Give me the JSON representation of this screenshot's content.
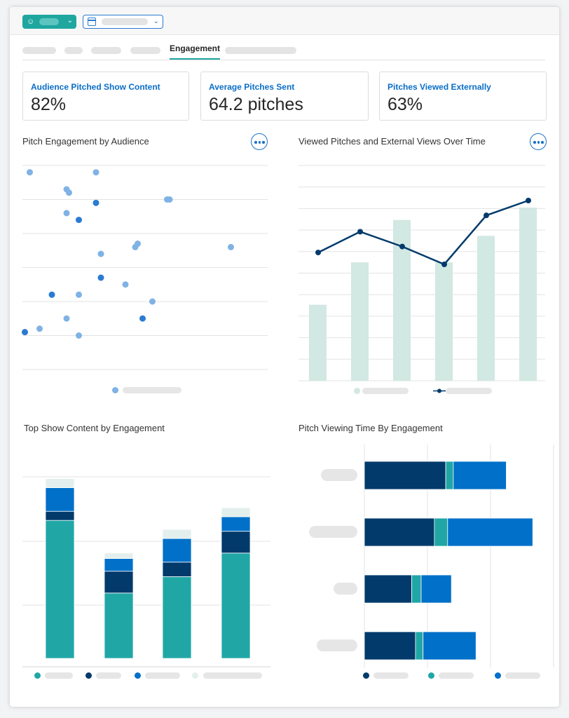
{
  "tabs": {
    "active_label": "Engagement"
  },
  "icons": {
    "audience": "audience-icon",
    "calendar": "calendar-icon",
    "chevron": "chevron-down-icon",
    "more": "more-options-icon"
  },
  "colors": {
    "teal": "#21a6a6",
    "navy": "#013a6b",
    "blue": "#0070c9",
    "light_teal": "#e3efec",
    "pale_bar": "#d2e8e2",
    "dot_light": "#7fb2e5",
    "dot_dark": "#2a7bd1",
    "link": "#0a6ec7"
  },
  "kpis": [
    {
      "label": "Audience Pitched Show Content",
      "value": "82%"
    },
    {
      "label": "Average Pitches Sent",
      "value": "64.2 pitches"
    },
    {
      "label": "Pitches Viewed Externally",
      "value": "63%"
    }
  ],
  "panels": {
    "scatter_title": "Pitch Engagement by Audience",
    "combo_title": "Viewed Pitches and External Views Over Time",
    "stacked_title": "Top Show Content by Engagement",
    "hbar_title": "Pitch Viewing Time By Engagement"
  },
  "chart_data": [
    {
      "type": "scatter",
      "title": "Pitch Engagement by Audience",
      "xlim": [
        0,
        100
      ],
      "ylim": [
        0,
        6
      ],
      "grid": true,
      "points": [
        {
          "x": 3,
          "y": 5.8,
          "dark": false
        },
        {
          "x": 30,
          "y": 5.8,
          "dark": false
        },
        {
          "x": 18,
          "y": 5.3,
          "dark": false
        },
        {
          "x": 19,
          "y": 5.2,
          "dark": false
        },
        {
          "x": 59,
          "y": 5.0,
          "dark": false
        },
        {
          "x": 60,
          "y": 5.0,
          "dark": false
        },
        {
          "x": 30,
          "y": 4.9,
          "dark": true
        },
        {
          "x": 18,
          "y": 4.6,
          "dark": false
        },
        {
          "x": 23,
          "y": 4.4,
          "dark": true
        },
        {
          "x": 47,
          "y": 3.7,
          "dark": false
        },
        {
          "x": 46,
          "y": 3.6,
          "dark": false
        },
        {
          "x": 85,
          "y": 3.6,
          "dark": false
        },
        {
          "x": 32,
          "y": 3.4,
          "dark": false
        },
        {
          "x": 32,
          "y": 2.7,
          "dark": true
        },
        {
          "x": 42,
          "y": 2.5,
          "dark": false
        },
        {
          "x": 12,
          "y": 2.2,
          "dark": true
        },
        {
          "x": 23,
          "y": 2.2,
          "dark": false
        },
        {
          "x": 53,
          "y": 2.0,
          "dark": false
        },
        {
          "x": 18,
          "y": 1.5,
          "dark": false
        },
        {
          "x": 49,
          "y": 1.5,
          "dark": true
        },
        {
          "x": 7,
          "y": 1.2,
          "dark": false
        },
        {
          "x": 1,
          "y": 1.1,
          "dark": true
        },
        {
          "x": 23,
          "y": 1.0,
          "dark": false
        }
      ]
    },
    {
      "type": "bar+line",
      "title": "Viewed Pitches and External Views Over Time",
      "ylim": [
        0,
        100
      ],
      "bars": [
        43,
        67,
        91,
        67,
        82,
        98
      ],
      "line": [
        65,
        79,
        69,
        57,
        90,
        100
      ]
    },
    {
      "type": "stacked-bar",
      "title": "Top Show Content by Engagement",
      "ylim": [
        0,
        100
      ],
      "series_colors": [
        "#21a6a6",
        "#013a6b",
        "#0070c9",
        "#e3efec"
      ],
      "stacks": [
        [
          76,
          5,
          13,
          5
        ],
        [
          36,
          12,
          7,
          3
        ],
        [
          45,
          8,
          13,
          5
        ],
        [
          58,
          12,
          8,
          5
        ]
      ]
    },
    {
      "type": "stacked-hbar",
      "title": "Pitch Viewing Time By Engagement",
      "xlim": [
        0,
        100
      ],
      "series_colors": [
        "#013a6b",
        "#21a6a6",
        "#0070c9"
      ],
      "rows": [
        [
          43,
          4,
          28
        ],
        [
          37,
          7,
          45
        ],
        [
          25,
          5,
          16
        ],
        [
          27,
          4,
          28
        ]
      ]
    }
  ]
}
